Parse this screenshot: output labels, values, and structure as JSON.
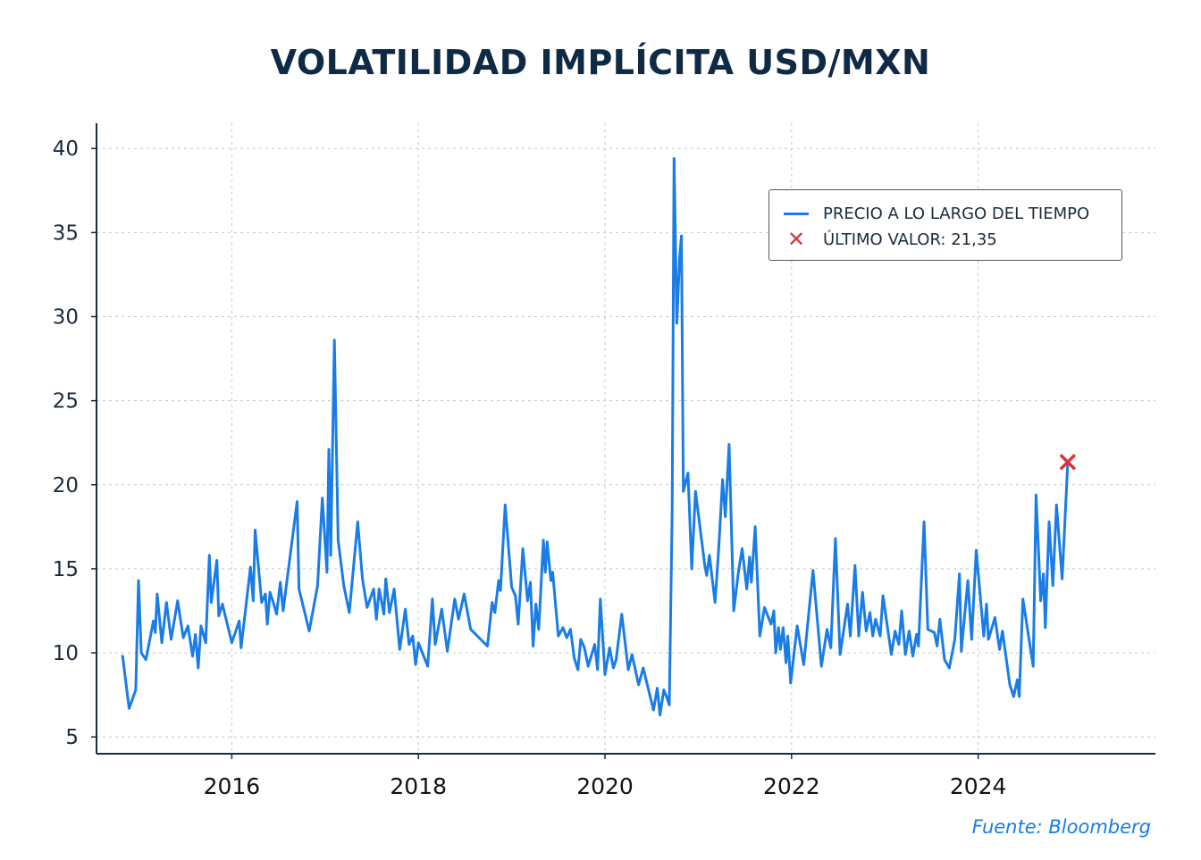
{
  "title": "VOLATILIDAD IMPLÍCITA USD/MXN",
  "source": "Fuente: Bloomberg",
  "legend": {
    "series_label": "PRECIO A LO LARGO DEL TIEMPO",
    "last_label": "ÚLTIMO VALOR: 21,35"
  },
  "colors": {
    "line": "#1a7ce6",
    "marker": "#d9343a",
    "title": "#0f2a44",
    "grid": "#c8c8c8"
  },
  "chart_data": {
    "type": "line",
    "title": "VOLATILIDAD IMPLÍCITA USD/MXN",
    "xlabel": "",
    "ylabel": "",
    "xlim": [
      2014.55,
      2025.9
    ],
    "ylim": [
      4.0,
      41.5
    ],
    "x_ticks": [
      2016,
      2018,
      2020,
      2022,
      2024
    ],
    "y_ticks": [
      5,
      10,
      15,
      20,
      25,
      30,
      35,
      40
    ],
    "grid": true,
    "legend_position": "top-right",
    "series": [
      {
        "name": "PRECIO A LO LARGO DEL TIEMPO",
        "points": [
          [
            2014.83,
            9.8
          ],
          [
            2014.9,
            6.7
          ],
          [
            2014.97,
            7.8
          ],
          [
            2015.0,
            14.3
          ],
          [
            2015.03,
            10.0
          ],
          [
            2015.08,
            9.6
          ],
          [
            2015.16,
            11.9
          ],
          [
            2015.18,
            11.2
          ],
          [
            2015.2,
            13.5
          ],
          [
            2015.25,
            10.6
          ],
          [
            2015.3,
            13.0
          ],
          [
            2015.35,
            10.8
          ],
          [
            2015.42,
            13.1
          ],
          [
            2015.48,
            10.9
          ],
          [
            2015.53,
            11.6
          ],
          [
            2015.58,
            9.8
          ],
          [
            2015.61,
            11.1
          ],
          [
            2015.64,
            9.1
          ],
          [
            2015.67,
            11.6
          ],
          [
            2015.72,
            10.6
          ],
          [
            2015.76,
            15.8
          ],
          [
            2015.78,
            13.0
          ],
          [
            2015.84,
            15.5
          ],
          [
            2015.86,
            12.2
          ],
          [
            2015.9,
            12.9
          ],
          [
            2016.0,
            10.6
          ],
          [
            2016.08,
            11.9
          ],
          [
            2016.1,
            10.3
          ],
          [
            2016.2,
            15.1
          ],
          [
            2016.23,
            13.1
          ],
          [
            2016.25,
            17.3
          ],
          [
            2016.32,
            13.0
          ],
          [
            2016.36,
            13.5
          ],
          [
            2016.38,
            11.7
          ],
          [
            2016.41,
            13.6
          ],
          [
            2016.45,
            12.9
          ],
          [
            2016.48,
            12.3
          ],
          [
            2016.52,
            14.2
          ],
          [
            2016.55,
            12.5
          ],
          [
            2016.7,
            19.0
          ],
          [
            2016.72,
            13.8
          ],
          [
            2016.83,
            11.3
          ],
          [
            2016.92,
            14.0
          ],
          [
            2016.97,
            19.2
          ],
          [
            2017.02,
            14.8
          ],
          [
            2017.04,
            22.1
          ],
          [
            2017.06,
            15.8
          ],
          [
            2017.1,
            28.6
          ],
          [
            2017.14,
            16.7
          ],
          [
            2017.2,
            14.0
          ],
          [
            2017.26,
            12.4
          ],
          [
            2017.35,
            17.8
          ],
          [
            2017.4,
            14.4
          ],
          [
            2017.45,
            12.7
          ],
          [
            2017.52,
            13.8
          ],
          [
            2017.55,
            12.0
          ],
          [
            2017.58,
            13.8
          ],
          [
            2017.63,
            12.3
          ],
          [
            2017.65,
            14.4
          ],
          [
            2017.69,
            12.4
          ],
          [
            2017.74,
            13.8
          ],
          [
            2017.8,
            10.2
          ],
          [
            2017.86,
            12.6
          ],
          [
            2017.9,
            10.5
          ],
          [
            2017.94,
            11.0
          ],
          [
            2017.97,
            9.3
          ],
          [
            2018.0,
            10.6
          ],
          [
            2018.1,
            9.2
          ],
          [
            2018.15,
            13.2
          ],
          [
            2018.18,
            10.5
          ],
          [
            2018.25,
            12.6
          ],
          [
            2018.31,
            10.1
          ],
          [
            2018.39,
            13.2
          ],
          [
            2018.43,
            12.0
          ],
          [
            2018.49,
            13.5
          ],
          [
            2018.56,
            11.4
          ],
          [
            2018.74,
            10.4
          ],
          [
            2018.79,
            13.0
          ],
          [
            2018.82,
            12.4
          ],
          [
            2018.86,
            14.3
          ],
          [
            2018.88,
            13.7
          ],
          [
            2018.93,
            18.8
          ],
          [
            2019.0,
            13.9
          ],
          [
            2019.04,
            13.4
          ],
          [
            2019.07,
            11.7
          ],
          [
            2019.12,
            16.2
          ],
          [
            2019.17,
            13.1
          ],
          [
            2019.2,
            14.2
          ],
          [
            2019.23,
            10.4
          ],
          [
            2019.26,
            12.9
          ],
          [
            2019.29,
            11.4
          ],
          [
            2019.34,
            16.7
          ],
          [
            2019.36,
            14.8
          ],
          [
            2019.38,
            16.6
          ],
          [
            2019.42,
            14.3
          ],
          [
            2019.44,
            14.8
          ],
          [
            2019.5,
            11.0
          ],
          [
            2019.55,
            11.5
          ],
          [
            2019.59,
            10.9
          ],
          [
            2019.63,
            11.4
          ],
          [
            2019.67,
            9.7
          ],
          [
            2019.71,
            9.0
          ],
          [
            2019.74,
            10.8
          ],
          [
            2019.78,
            10.3
          ],
          [
            2019.82,
            9.2
          ],
          [
            2019.89,
            10.5
          ],
          [
            2019.92,
            9.0
          ],
          [
            2019.95,
            13.2
          ],
          [
            2020.0,
            8.7
          ],
          [
            2020.05,
            10.3
          ],
          [
            2020.09,
            9.1
          ],
          [
            2020.12,
            9.6
          ],
          [
            2020.18,
            12.3
          ],
          [
            2020.25,
            9.0
          ],
          [
            2020.29,
            9.9
          ],
          [
            2020.36,
            8.1
          ],
          [
            2020.41,
            9.1
          ],
          [
            2020.52,
            6.6
          ],
          [
            2020.56,
            7.9
          ],
          [
            2020.59,
            6.3
          ],
          [
            2020.63,
            7.8
          ],
          [
            2020.66,
            7.4
          ],
          [
            2020.69,
            6.9
          ],
          [
            2020.72,
            18.4
          ],
          [
            2020.74,
            39.4
          ],
          [
            2020.77,
            29.6
          ],
          [
            2020.8,
            33.5
          ],
          [
            2020.82,
            34.8
          ],
          [
            2020.84,
            19.6
          ],
          [
            2020.89,
            20.7
          ],
          [
            2020.93,
            15.0
          ],
          [
            2020.97,
            19.6
          ],
          [
            2021.07,
            15.2
          ],
          [
            2021.09,
            14.6
          ],
          [
            2021.12,
            15.8
          ],
          [
            2021.18,
            13.0
          ],
          [
            2021.22,
            16.3
          ],
          [
            2021.26,
            20.3
          ],
          [
            2021.29,
            18.1
          ],
          [
            2021.33,
            22.4
          ],
          [
            2021.38,
            12.5
          ],
          [
            2021.43,
            14.8
          ],
          [
            2021.47,
            16.2
          ],
          [
            2021.52,
            13.8
          ],
          [
            2021.55,
            15.7
          ],
          [
            2021.57,
            14.2
          ],
          [
            2021.61,
            17.5
          ],
          [
            2021.66,
            11.0
          ],
          [
            2021.71,
            12.7
          ],
          [
            2021.78,
            11.7
          ],
          [
            2021.81,
            12.5
          ],
          [
            2021.83,
            10.0
          ],
          [
            2021.86,
            11.5
          ],
          [
            2021.88,
            10.2
          ],
          [
            2021.91,
            11.5
          ],
          [
            2021.94,
            9.4
          ],
          [
            2021.96,
            11.0
          ],
          [
            2021.99,
            8.2
          ],
          [
            2022.06,
            11.6
          ],
          [
            2022.13,
            9.3
          ],
          [
            2022.23,
            14.9
          ],
          [
            2022.32,
            9.2
          ],
          [
            2022.38,
            11.4
          ],
          [
            2022.42,
            10.3
          ],
          [
            2022.47,
            16.8
          ],
          [
            2022.52,
            9.9
          ],
          [
            2022.6,
            12.9
          ],
          [
            2022.63,
            11.0
          ],
          [
            2022.68,
            15.2
          ],
          [
            2022.72,
            11.0
          ],
          [
            2022.76,
            13.6
          ],
          [
            2022.8,
            11.3
          ],
          [
            2022.84,
            12.4
          ],
          [
            2022.87,
            11.0
          ],
          [
            2022.9,
            12.0
          ],
          [
            2022.95,
            11.0
          ],
          [
            2022.98,
            13.4
          ],
          [
            2023.07,
            9.9
          ],
          [
            2023.11,
            11.3
          ],
          [
            2023.15,
            10.5
          ],
          [
            2023.18,
            12.5
          ],
          [
            2023.22,
            9.9
          ],
          [
            2023.26,
            11.3
          ],
          [
            2023.3,
            9.8
          ],
          [
            2023.34,
            11.1
          ],
          [
            2023.36,
            10.4
          ],
          [
            2023.42,
            17.8
          ],
          [
            2023.46,
            11.4
          ],
          [
            2023.53,
            11.2
          ],
          [
            2023.56,
            10.4
          ],
          [
            2023.59,
            12.0
          ],
          [
            2023.64,
            9.6
          ],
          [
            2023.69,
            9.1
          ],
          [
            2023.75,
            10.8
          ],
          [
            2023.8,
            14.7
          ],
          [
            2023.82,
            10.1
          ],
          [
            2023.89,
            14.3
          ],
          [
            2023.93,
            10.8
          ],
          [
            2023.98,
            16.1
          ],
          [
            2024.06,
            11.0
          ],
          [
            2024.09,
            12.9
          ],
          [
            2024.11,
            10.8
          ],
          [
            2024.18,
            12.1
          ],
          [
            2024.23,
            10.2
          ],
          [
            2024.26,
            11.3
          ],
          [
            2024.34,
            8.1
          ],
          [
            2024.38,
            7.4
          ],
          [
            2024.42,
            8.4
          ],
          [
            2024.44,
            7.4
          ],
          [
            2024.48,
            13.2
          ],
          [
            2024.59,
            9.2
          ],
          [
            2024.62,
            19.4
          ],
          [
            2024.67,
            13.1
          ],
          [
            2024.7,
            14.7
          ],
          [
            2024.72,
            11.5
          ],
          [
            2024.76,
            17.8
          ],
          [
            2024.8,
            14.0
          ],
          [
            2024.84,
            18.8
          ],
          [
            2024.9,
            14.4
          ],
          [
            2024.96,
            21.35
          ]
        ]
      }
    ],
    "last_value": {
      "x": 2024.96,
      "y": 21.35,
      "label": "ÚLTIMO VALOR: 21,35"
    }
  }
}
